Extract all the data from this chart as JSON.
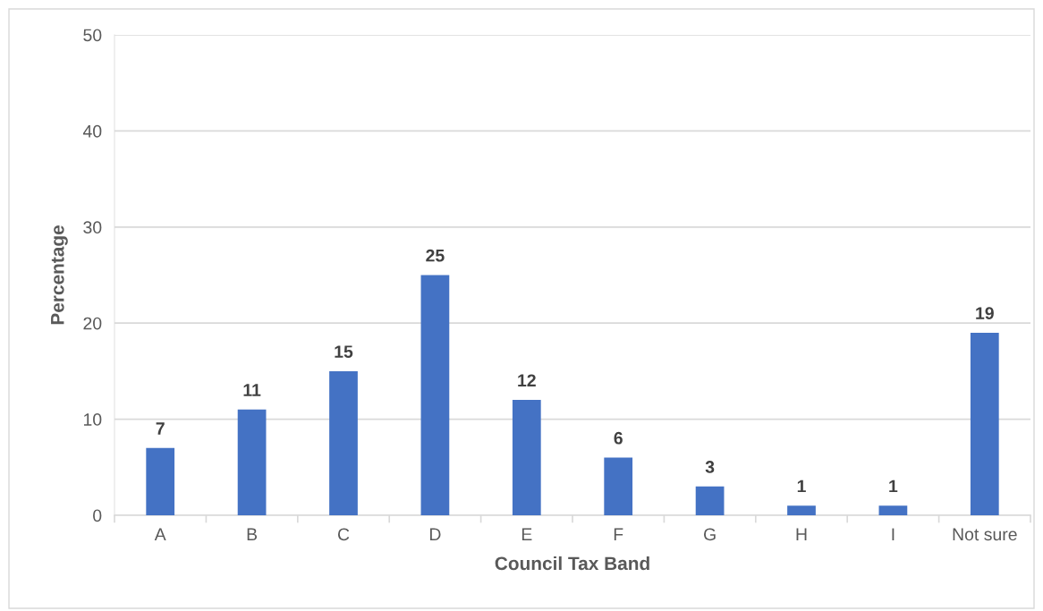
{
  "chart_data": {
    "type": "bar",
    "xlabel": "Council Tax Band",
    "ylabel": "Percentage",
    "categories": [
      "A",
      "B",
      "C",
      "D",
      "E",
      "F",
      "G",
      "H",
      "I",
      "Not sure"
    ],
    "values": [
      7,
      11,
      15,
      25,
      12,
      6,
      3,
      1,
      1,
      19
    ],
    "color": "#4472c4",
    "ylim": [
      0,
      50
    ],
    "yticks": [
      0,
      10,
      20,
      30,
      40,
      50
    ],
    "grid": "y",
    "data_labels": true
  }
}
